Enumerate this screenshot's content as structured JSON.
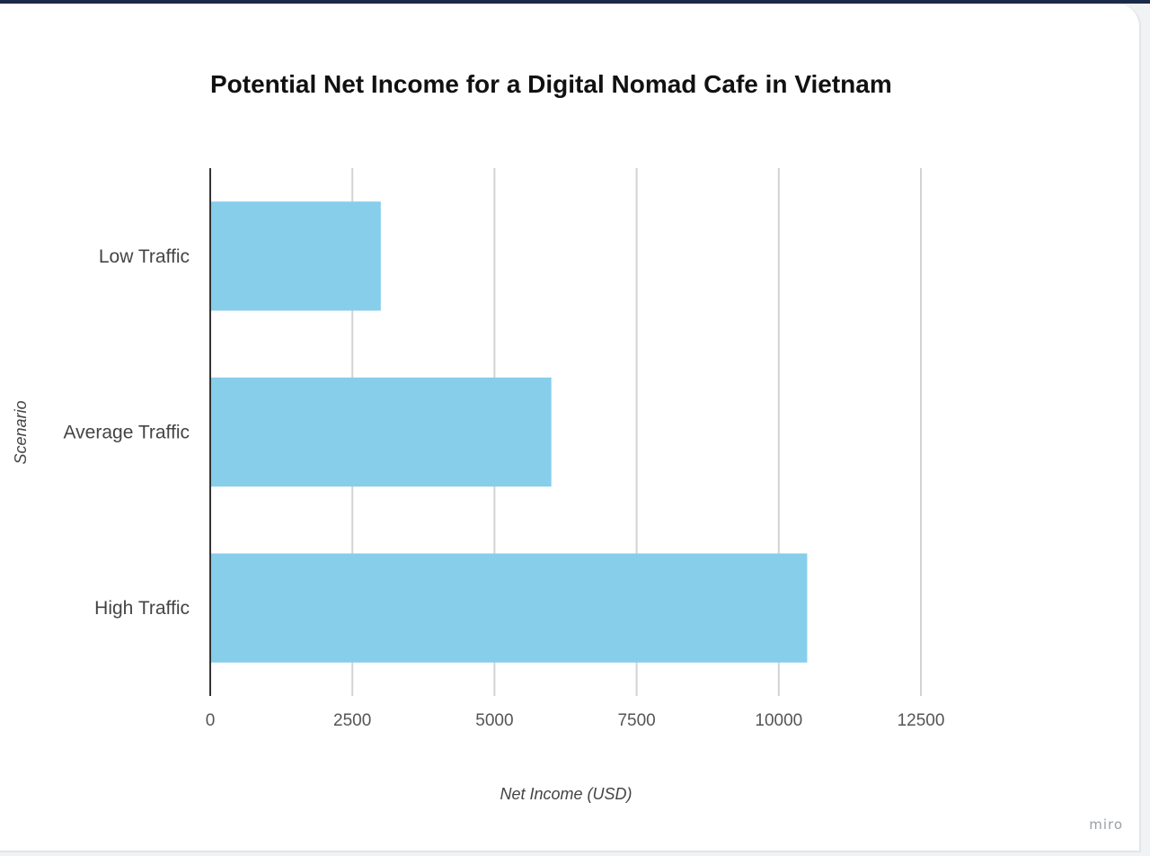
{
  "chart_data": {
    "type": "bar",
    "orientation": "horizontal",
    "title": "Potential Net Income for a Digital Nomad Cafe in Vietnam",
    "xlabel": "Net Income (USD)",
    "ylabel": "Scenario",
    "categories": [
      "Low Traffic",
      "Average Traffic",
      "High Traffic"
    ],
    "values": [
      3000,
      6000,
      10500
    ],
    "xlim": [
      0,
      12500
    ],
    "xticks": [
      0,
      2500,
      5000,
      7500,
      10000,
      12500
    ],
    "grid": true,
    "bar_color": "#87ceeb"
  },
  "watermark": "miro"
}
